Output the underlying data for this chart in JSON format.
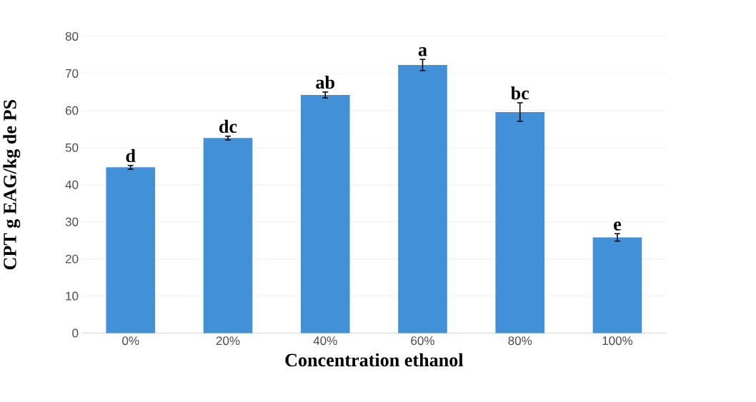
{
  "chart_data": {
    "type": "bar",
    "xlabel": "Concentration ethanol",
    "ylabel": "CPT g EAG/kg de PS",
    "categories": [
      "0%",
      "20%",
      "40%",
      "60%",
      "80%",
      "100%"
    ],
    "values": [
      44.7,
      52.6,
      64.2,
      72.3,
      59.6,
      25.8
    ],
    "errors": [
      0.5,
      0.5,
      0.8,
      1.5,
      2.5,
      1.0
    ],
    "color": "#4190d8",
    "ylim": [
      0,
      80
    ],
    "yticks": [
      0,
      10,
      20,
      30,
      40,
      50,
      60,
      70,
      80
    ],
    "grid": "y",
    "annotations": [
      "d",
      "dc",
      "ab",
      "a",
      "bc",
      "e"
    ]
  }
}
